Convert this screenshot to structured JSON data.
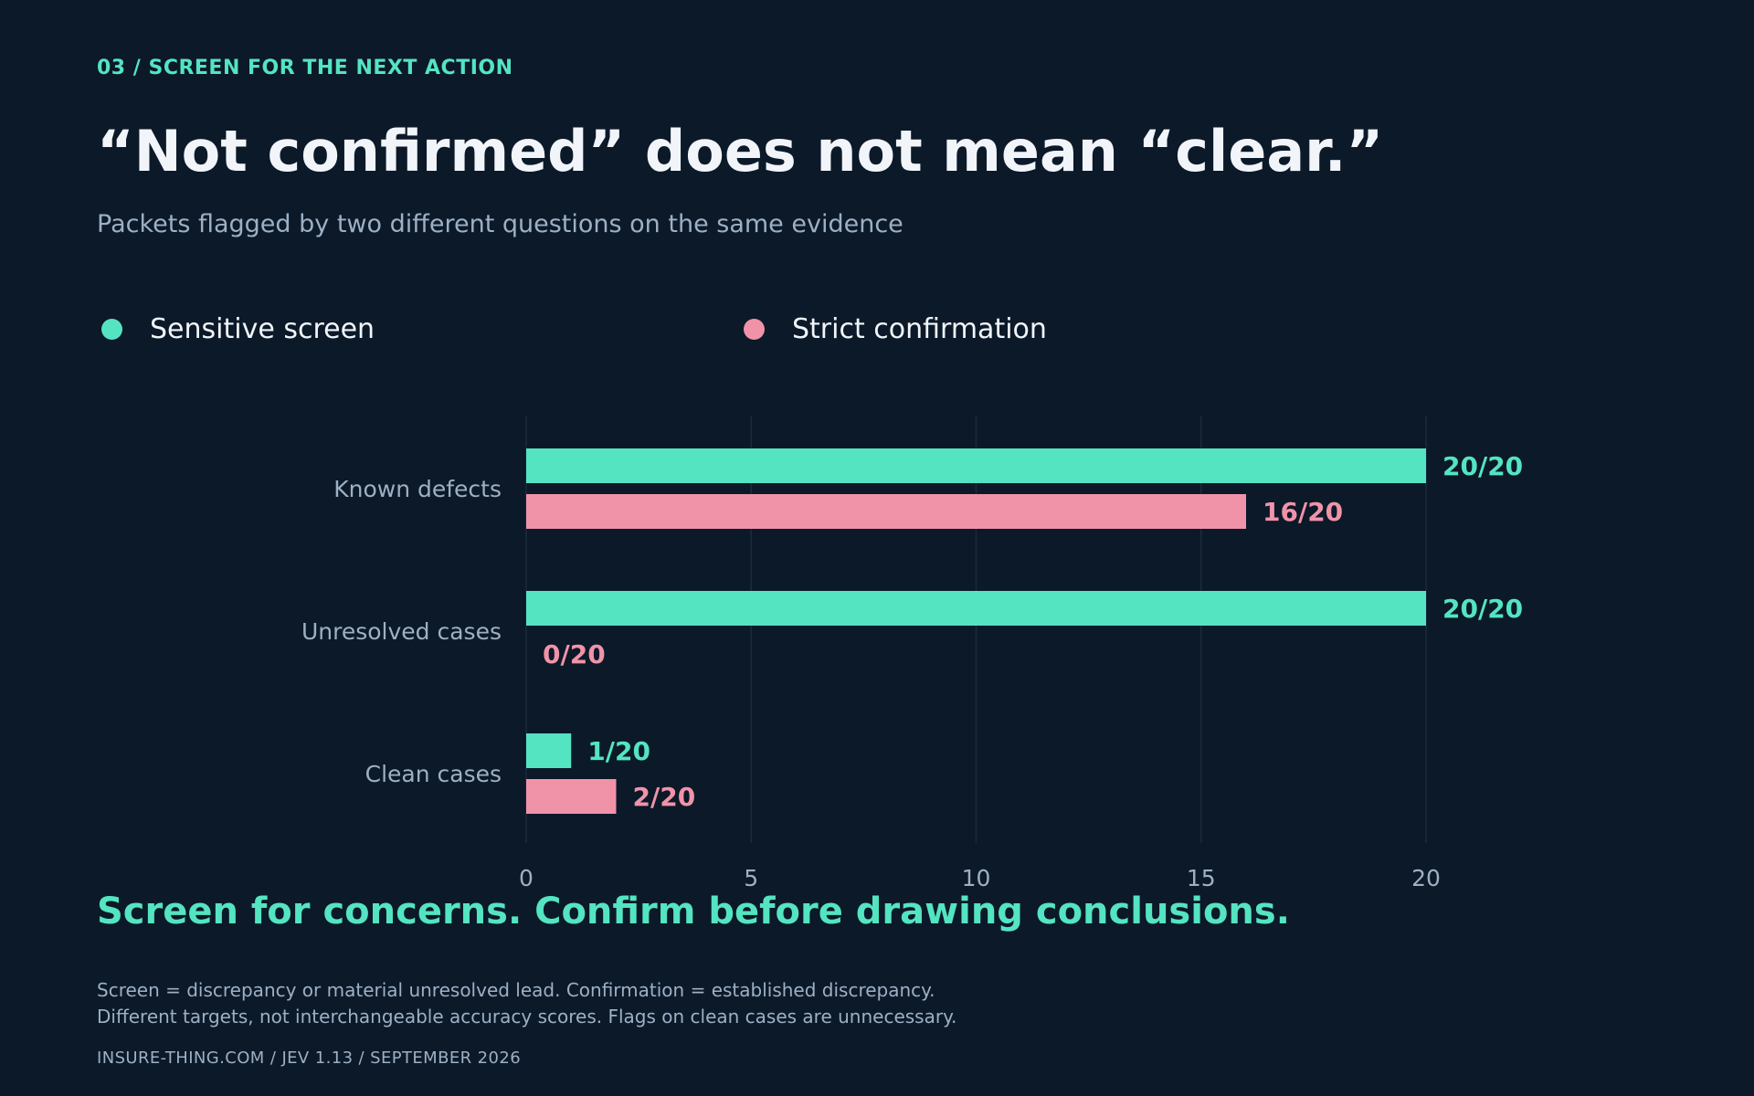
{
  "header": {
    "kicker": "03 / SCREEN FOR THE NEXT ACTION",
    "title": "“Not confirmed” does not mean “clear.”",
    "subtitle": "Packets flagged by two different questions on the same evidence"
  },
  "colors": {
    "background": "#0b1929",
    "screen": "#54e4c1",
    "confirmation": "#f093a9",
    "text": "#f1f5fa",
    "muted": "#9db0c4",
    "grid": "#1a2b3d"
  },
  "chart_data": {
    "type": "bar",
    "orientation": "horizontal",
    "categories": [
      "Known defects",
      "Unresolved cases",
      "Clean cases"
    ],
    "series": [
      {
        "name": "Sensitive screen",
        "values": [
          20,
          20,
          1
        ],
        "labels": [
          "20/20",
          "20/20",
          "1/20"
        ]
      },
      {
        "name": "Strict confirmation",
        "values": [
          16,
          0,
          2
        ],
        "labels": [
          "16/20",
          "0/20",
          "2/20"
        ]
      }
    ],
    "xlim": [
      0,
      20
    ],
    "xticks": [
      "0",
      "5",
      "10",
      "15",
      "20"
    ],
    "xlabel": "",
    "ylabel": "",
    "grid": "vertical",
    "legend": "top-left"
  },
  "takeaway": "Screen for concerns. Confirm before drawing conclusions.",
  "notes": [
    "Screen = discrepancy or material unresolved lead. Confirmation = established discrepancy.",
    "Different targets, not interchangeable accuracy scores. Flags on clean cases are unnecessary."
  ],
  "footer": "INSURE-THING.COM  /  JEV 1.13  /  SEPTEMBER 2026"
}
